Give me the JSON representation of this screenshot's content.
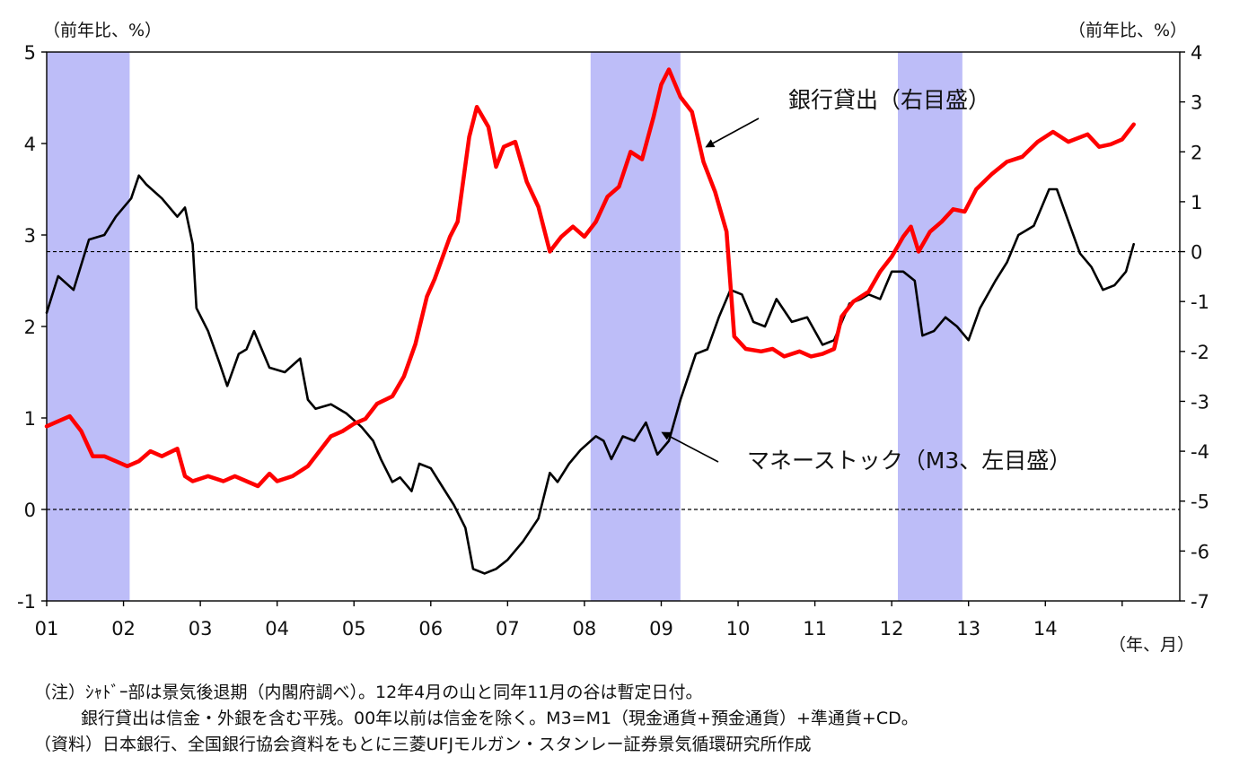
{
  "chart_data": {
    "type": "line",
    "left_axis": {
      "unit_label": "（前年比、%）",
      "range": [
        -1,
        5
      ],
      "ticks": [
        "5",
        "4",
        "3",
        "2",
        "1",
        "0",
        "-1"
      ]
    },
    "right_axis": {
      "unit_label": "（前年比、%）",
      "range": [
        -7,
        4
      ],
      "ticks": [
        "4",
        "3",
        "2",
        "1",
        "0",
        "-1",
        "-2",
        "-3",
        "-4",
        "-5",
        "-6",
        "-7"
      ]
    },
    "x_axis": {
      "unit_label": "（年、月）",
      "range": [
        2001.0,
        2015.75
      ],
      "ticks": [
        "01",
        "02",
        "03",
        "04",
        "05",
        "06",
        "07",
        "08",
        "09",
        "10",
        "11",
        "12",
        "13",
        "14"
      ]
    },
    "recessions": [
      {
        "from": 2001.0,
        "to": 2002.08
      },
      {
        "from": 2008.08,
        "to": 2009.25
      },
      {
        "from": 2012.08,
        "to": 2012.92
      }
    ],
    "reference_lines": [
      {
        "axis": "left",
        "value": 0
      },
      {
        "axis": "right",
        "value": 0
      }
    ],
    "series": [
      {
        "name": "マネーストック（M3、左目盛）",
        "axis": "left",
        "color": "#000000",
        "points": [
          [
            2001.0,
            2.15
          ],
          [
            2001.15,
            2.55
          ],
          [
            2001.35,
            2.4
          ],
          [
            2001.55,
            2.95
          ],
          [
            2001.75,
            3.0
          ],
          [
            2001.9,
            3.2
          ],
          [
            2002.1,
            3.4
          ],
          [
            2002.2,
            3.65
          ],
          [
            2002.3,
            3.55
          ],
          [
            2002.5,
            3.4
          ],
          [
            2002.7,
            3.2
          ],
          [
            2002.8,
            3.3
          ],
          [
            2002.9,
            2.9
          ],
          [
            2002.95,
            2.2
          ],
          [
            2003.1,
            1.95
          ],
          [
            2003.25,
            1.6
          ],
          [
            2003.35,
            1.35
          ],
          [
            2003.5,
            1.7
          ],
          [
            2003.6,
            1.75
          ],
          [
            2003.7,
            1.95
          ],
          [
            2003.9,
            1.55
          ],
          [
            2004.1,
            1.5
          ],
          [
            2004.3,
            1.65
          ],
          [
            2004.4,
            1.2
          ],
          [
            2004.5,
            1.1
          ],
          [
            2004.7,
            1.15
          ],
          [
            2004.9,
            1.05
          ],
          [
            2005.1,
            0.9
          ],
          [
            2005.25,
            0.75
          ],
          [
            2005.35,
            0.55
          ],
          [
            2005.5,
            0.3
          ],
          [
            2005.6,
            0.35
          ],
          [
            2005.75,
            0.2
          ],
          [
            2005.85,
            0.5
          ],
          [
            2006.0,
            0.45
          ],
          [
            2006.15,
            0.25
          ],
          [
            2006.3,
            0.05
          ],
          [
            2006.45,
            -0.2
          ],
          [
            2006.55,
            -0.65
          ],
          [
            2006.7,
            -0.7
          ],
          [
            2006.85,
            -0.65
          ],
          [
            2007.0,
            -0.55
          ],
          [
            2007.2,
            -0.35
          ],
          [
            2007.4,
            -0.1
          ],
          [
            2007.55,
            0.4
          ],
          [
            2007.65,
            0.3
          ],
          [
            2007.8,
            0.5
          ],
          [
            2007.95,
            0.65
          ],
          [
            2008.15,
            0.8
          ],
          [
            2008.25,
            0.75
          ],
          [
            2008.35,
            0.55
          ],
          [
            2008.5,
            0.8
          ],
          [
            2008.65,
            0.75
          ],
          [
            2008.8,
            0.95
          ],
          [
            2008.95,
            0.6
          ],
          [
            2009.1,
            0.75
          ],
          [
            2009.25,
            1.2
          ],
          [
            2009.45,
            1.7
          ],
          [
            2009.6,
            1.75
          ],
          [
            2009.75,
            2.1
          ],
          [
            2009.9,
            2.4
          ],
          [
            2010.05,
            2.35
          ],
          [
            2010.2,
            2.05
          ],
          [
            2010.35,
            2.0
          ],
          [
            2010.5,
            2.3
          ],
          [
            2010.7,
            2.05
          ],
          [
            2010.9,
            2.1
          ],
          [
            2011.0,
            1.95
          ],
          [
            2011.1,
            1.8
          ],
          [
            2011.25,
            1.85
          ],
          [
            2011.45,
            2.25
          ],
          [
            2011.6,
            2.3
          ],
          [
            2011.7,
            2.35
          ],
          [
            2011.85,
            2.3
          ],
          [
            2012.0,
            2.6
          ],
          [
            2012.15,
            2.6
          ],
          [
            2012.3,
            2.5
          ],
          [
            2012.4,
            1.9
          ],
          [
            2012.55,
            1.95
          ],
          [
            2012.7,
            2.1
          ],
          [
            2012.85,
            2.0
          ],
          [
            2013.0,
            1.85
          ],
          [
            2013.15,
            2.2
          ],
          [
            2013.35,
            2.5
          ],
          [
            2013.5,
            2.7
          ],
          [
            2013.65,
            3.0
          ],
          [
            2013.85,
            3.1
          ],
          [
            2013.95,
            3.3
          ],
          [
            2014.05,
            3.5
          ],
          [
            2014.15,
            3.5
          ],
          [
            2014.3,
            3.15
          ],
          [
            2014.45,
            2.8
          ],
          [
            2014.6,
            2.65
          ],
          [
            2014.75,
            2.4
          ],
          [
            2014.9,
            2.45
          ],
          [
            2015.05,
            2.6
          ],
          [
            2015.15,
            2.9
          ]
        ]
      },
      {
        "name": "銀行貸出（右目盛）",
        "axis": "right",
        "color": "#ff0000",
        "points": [
          [
            2001.0,
            -3.5
          ],
          [
            2001.15,
            -3.4
          ],
          [
            2001.3,
            -3.3
          ],
          [
            2001.45,
            -3.6
          ],
          [
            2001.6,
            -4.1
          ],
          [
            2001.75,
            -4.1
          ],
          [
            2001.9,
            -4.2
          ],
          [
            2002.05,
            -4.3
          ],
          [
            2002.2,
            -4.2
          ],
          [
            2002.35,
            -4.0
          ],
          [
            2002.5,
            -4.1
          ],
          [
            2002.7,
            -3.95
          ],
          [
            2002.8,
            -4.5
          ],
          [
            2002.9,
            -4.6
          ],
          [
            2003.1,
            -4.5
          ],
          [
            2003.3,
            -4.6
          ],
          [
            2003.45,
            -4.5
          ],
          [
            2003.6,
            -4.6
          ],
          [
            2003.75,
            -4.7
          ],
          [
            2003.9,
            -4.45
          ],
          [
            2004.0,
            -4.6
          ],
          [
            2004.2,
            -4.5
          ],
          [
            2004.4,
            -4.3
          ],
          [
            2004.55,
            -4.0
          ],
          [
            2004.7,
            -3.7
          ],
          [
            2004.85,
            -3.6
          ],
          [
            2005.0,
            -3.45
          ],
          [
            2005.15,
            -3.35
          ],
          [
            2005.3,
            -3.05
          ],
          [
            2005.5,
            -2.9
          ],
          [
            2005.65,
            -2.5
          ],
          [
            2005.8,
            -1.85
          ],
          [
            2005.95,
            -0.9
          ],
          [
            2006.05,
            -0.55
          ],
          [
            2006.25,
            0.3
          ],
          [
            2006.35,
            0.6
          ],
          [
            2006.5,
            2.3
          ],
          [
            2006.6,
            2.9
          ],
          [
            2006.75,
            2.5
          ],
          [
            2006.85,
            1.7
          ],
          [
            2006.95,
            2.1
          ],
          [
            2007.1,
            2.2
          ],
          [
            2007.25,
            1.4
          ],
          [
            2007.4,
            0.9
          ],
          [
            2007.55,
            0.0
          ],
          [
            2007.7,
            0.3
          ],
          [
            2007.85,
            0.5
          ],
          [
            2008.0,
            0.3
          ],
          [
            2008.15,
            0.6
          ],
          [
            2008.3,
            1.1
          ],
          [
            2008.45,
            1.3
          ],
          [
            2008.6,
            2.0
          ],
          [
            2008.75,
            1.85
          ],
          [
            2008.9,
            2.7
          ],
          [
            2009.0,
            3.35
          ],
          [
            2009.1,
            3.65
          ],
          [
            2009.25,
            3.1
          ],
          [
            2009.4,
            2.8
          ],
          [
            2009.55,
            1.8
          ],
          [
            2009.7,
            1.2
          ],
          [
            2009.85,
            0.4
          ],
          [
            2009.95,
            -1.7
          ],
          [
            2010.1,
            -1.95
          ],
          [
            2010.3,
            -2.0
          ],
          [
            2010.45,
            -1.95
          ],
          [
            2010.6,
            -2.1
          ],
          [
            2010.8,
            -2.0
          ],
          [
            2010.95,
            -2.1
          ],
          [
            2011.1,
            -2.05
          ],
          [
            2011.25,
            -1.95
          ],
          [
            2011.35,
            -1.3
          ],
          [
            2011.5,
            -1.0
          ],
          [
            2011.7,
            -0.8
          ],
          [
            2011.85,
            -0.4
          ],
          [
            2012.0,
            -0.1
          ],
          [
            2012.15,
            0.3
          ],
          [
            2012.25,
            0.5
          ],
          [
            2012.35,
            0.0
          ],
          [
            2012.5,
            0.4
          ],
          [
            2012.65,
            0.6
          ],
          [
            2012.8,
            0.85
          ],
          [
            2012.95,
            0.8
          ],
          [
            2013.1,
            1.25
          ],
          [
            2013.3,
            1.55
          ],
          [
            2013.5,
            1.8
          ],
          [
            2013.7,
            1.9
          ],
          [
            2013.9,
            2.2
          ],
          [
            2014.1,
            2.4
          ],
          [
            2014.3,
            2.2
          ],
          [
            2014.55,
            2.35
          ],
          [
            2014.7,
            2.1
          ],
          [
            2014.85,
            2.15
          ],
          [
            2015.0,
            2.25
          ],
          [
            2015.15,
            2.55
          ]
        ]
      }
    ],
    "annotations": [
      {
        "text": "銀行貸出（右目盛）",
        "series": 1
      },
      {
        "text": "マネーストック（M3、左目盛）",
        "series": 0
      }
    ]
  },
  "notes": [
    "（注）ｼｬﾄﾞｰ部は景気後退期（内閣府調べ）。12年4月の山と同年11月の谷は暫定日付。",
    "銀行貸出は信金・外銀を含む平残。00年以前は信金を除く。M3=M1（現金通貨+預金通貨）+準通貨+CD。",
    "（資料）日本銀行、全国銀行協会資料をもとに三菱UFJモルガン・スタンレー証券景気循環研究所作成"
  ]
}
